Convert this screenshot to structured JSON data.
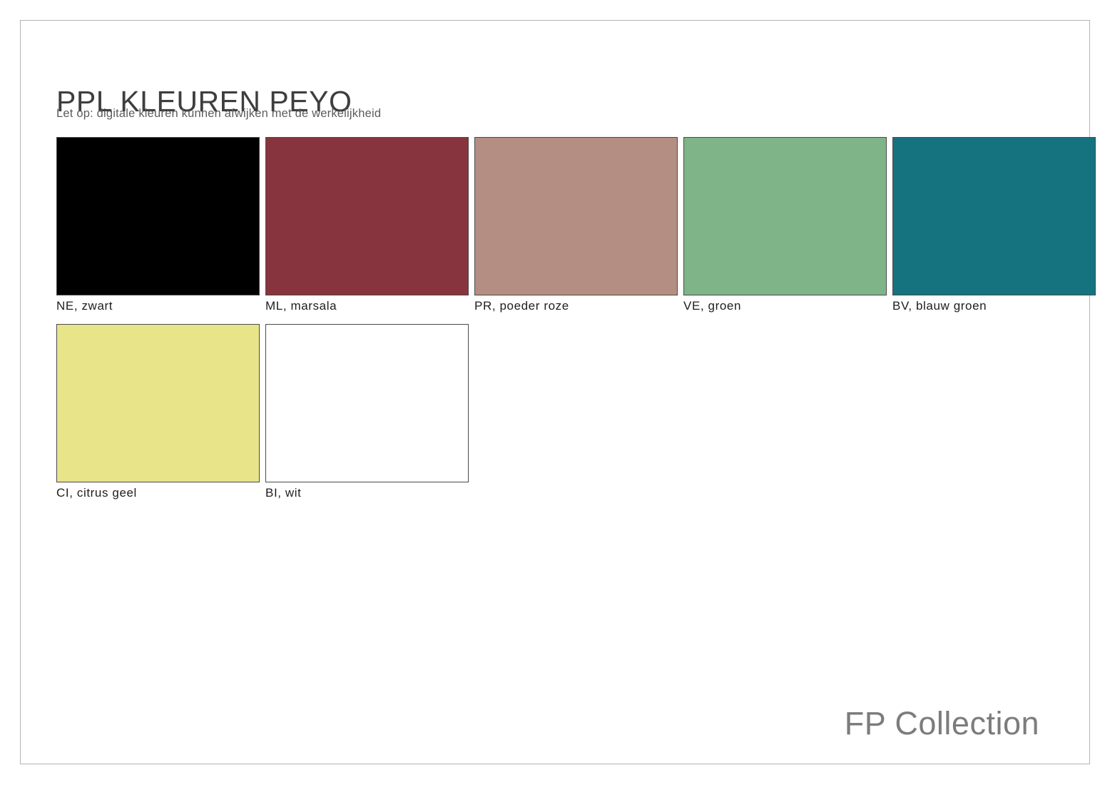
{
  "page": {
    "title": "PPL KLEUREN PEYO",
    "subtitle": "Let op: digitale kleuren kunnen afwijken met de werkelijkheid",
    "footer_brand": "FP Collection"
  },
  "colors": {
    "page_background": "#ffffff",
    "frame_border": "#b3b3b3",
    "title_text": "#3e3e3e",
    "subtitle_text": "#5c5c5c",
    "label_text": "#1e1e1e",
    "footer_text": "#7c7c7c",
    "swatch_border": "#4a4a4a"
  },
  "swatches": [
    {
      "code": "NE",
      "name": "zwart",
      "label": "NE, zwart",
      "hex": "#000000"
    },
    {
      "code": "ML",
      "name": "marsala",
      "label": "ML, marsala",
      "hex": "#87343f"
    },
    {
      "code": "PR",
      "name": "poeder roze",
      "label": "PR, poeder roze",
      "hex": "#b48e82"
    },
    {
      "code": "VE",
      "name": "groen",
      "label": "VE, groen",
      "hex": "#7fb489"
    },
    {
      "code": "BV",
      "name": "blauw groen",
      "label": "BV, blauw groen",
      "hex": "#157380"
    },
    {
      "code": "CI",
      "name": "citrus geel",
      "label": "CI, citrus geel",
      "hex": "#e8e48a"
    },
    {
      "code": "BI",
      "name": "wit",
      "label": "BI, wit",
      "hex": "#ffffff"
    }
  ]
}
